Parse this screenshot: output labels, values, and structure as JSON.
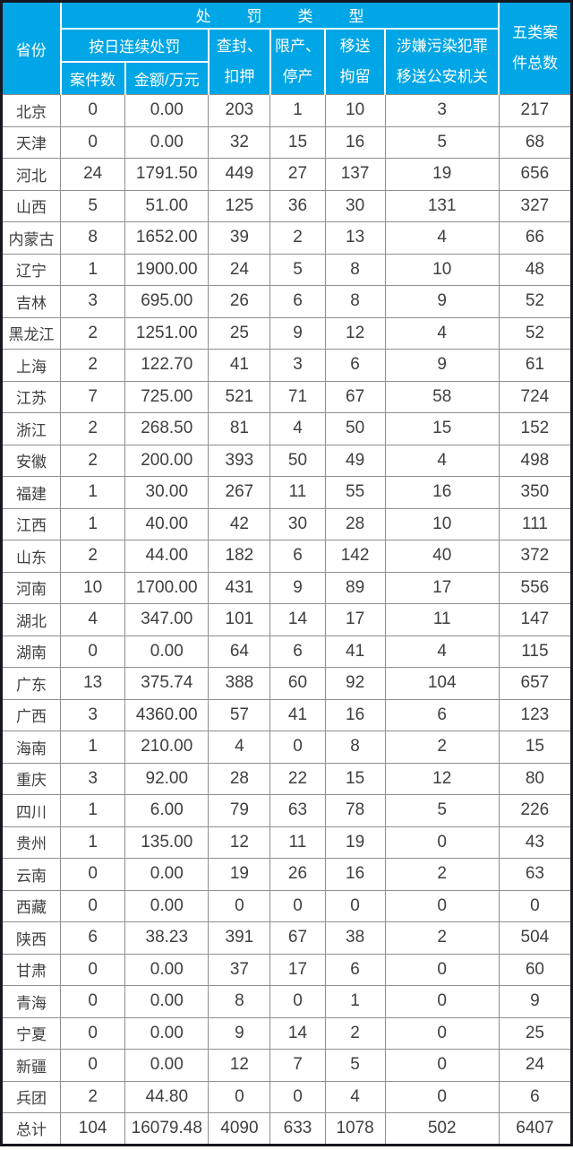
{
  "table": {
    "header": {
      "province": "省份",
      "penalty_type": "处罚类型",
      "daily_penalty": "按日连续处罚",
      "case_count": "案件数",
      "amount": "金额/万元",
      "seizure": "查封、\n扣押",
      "limit_production": "限产、\n停产",
      "transfer_detention": "移送\n拘留",
      "crime_transfer": "涉嫌污染犯罪\n移送公安机关",
      "five_types_total": "五类案\n件总数"
    },
    "colors": {
      "header_bg": "#00a6e6",
      "header_text": "#ffffff",
      "grid_line": "#8f8f8f",
      "outer_border": "#171721",
      "body_text": "#3f3f3f",
      "body_bg": "#ffffff"
    }
  },
  "chart_data": {
    "type": "table",
    "columns": [
      "省份",
      "按日连续处罚-案件数",
      "按日连续处罚-金额/万元",
      "查封、扣押",
      "限产、停产",
      "移送拘留",
      "涉嫌污染犯罪移送公安机关",
      "五类案件总数"
    ],
    "rows": [
      [
        "北京",
        "0",
        "0.00",
        "203",
        "1",
        "10",
        "3",
        "217"
      ],
      [
        "天津",
        "0",
        "0.00",
        "32",
        "15",
        "16",
        "5",
        "68"
      ],
      [
        "河北",
        "24",
        "1791.50",
        "449",
        "27",
        "137",
        "19",
        "656"
      ],
      [
        "山西",
        "5",
        "51.00",
        "125",
        "36",
        "30",
        "131",
        "327"
      ],
      [
        "内蒙古",
        "8",
        "1652.00",
        "39",
        "2",
        "13",
        "4",
        "66"
      ],
      [
        "辽宁",
        "1",
        "1900.00",
        "24",
        "5",
        "8",
        "10",
        "48"
      ],
      [
        "吉林",
        "3",
        "695.00",
        "26",
        "6",
        "8",
        "9",
        "52"
      ],
      [
        "黑龙江",
        "2",
        "1251.00",
        "25",
        "9",
        "12",
        "4",
        "52"
      ],
      [
        "上海",
        "2",
        "122.70",
        "41",
        "3",
        "6",
        "9",
        "61"
      ],
      [
        "江苏",
        "7",
        "725.00",
        "521",
        "71",
        "67",
        "58",
        "724"
      ],
      [
        "浙江",
        "2",
        "268.50",
        "81",
        "4",
        "50",
        "15",
        "152"
      ],
      [
        "安徽",
        "2",
        "200.00",
        "393",
        "50",
        "49",
        "4",
        "498"
      ],
      [
        "福建",
        "1",
        "30.00",
        "267",
        "11",
        "55",
        "16",
        "350"
      ],
      [
        "江西",
        "1",
        "40.00",
        "42",
        "30",
        "28",
        "10",
        "111"
      ],
      [
        "山东",
        "2",
        "44.00",
        "182",
        "6",
        "142",
        "40",
        "372"
      ],
      [
        "河南",
        "10",
        "1700.00",
        "431",
        "9",
        "89",
        "17",
        "556"
      ],
      [
        "湖北",
        "4",
        "347.00",
        "101",
        "14",
        "17",
        "11",
        "147"
      ],
      [
        "湖南",
        "0",
        "0.00",
        "64",
        "6",
        "41",
        "4",
        "115"
      ],
      [
        "广东",
        "13",
        "375.74",
        "388",
        "60",
        "92",
        "104",
        "657"
      ],
      [
        "广西",
        "3",
        "4360.00",
        "57",
        "41",
        "16",
        "6",
        "123"
      ],
      [
        "海南",
        "1",
        "210.00",
        "4",
        "0",
        "8",
        "2",
        "15"
      ],
      [
        "重庆",
        "3",
        "92.00",
        "28",
        "22",
        "15",
        "12",
        "80"
      ],
      [
        "四川",
        "1",
        "6.00",
        "79",
        "63",
        "78",
        "5",
        "226"
      ],
      [
        "贵州",
        "1",
        "135.00",
        "12",
        "11",
        "19",
        "0",
        "43"
      ],
      [
        "云南",
        "0",
        "0.00",
        "19",
        "26",
        "16",
        "2",
        "63"
      ],
      [
        "西藏",
        "0",
        "0.00",
        "0",
        "0",
        "0",
        "0",
        "0"
      ],
      [
        "陕西",
        "6",
        "38.23",
        "391",
        "67",
        "38",
        "2",
        "504"
      ],
      [
        "甘肃",
        "0",
        "0.00",
        "37",
        "17",
        "6",
        "0",
        "60"
      ],
      [
        "青海",
        "0",
        "0.00",
        "8",
        "0",
        "1",
        "0",
        "9"
      ],
      [
        "宁夏",
        "0",
        "0.00",
        "9",
        "14",
        "2",
        "0",
        "25"
      ],
      [
        "新疆",
        "0",
        "0.00",
        "12",
        "7",
        "5",
        "0",
        "24"
      ],
      [
        "兵团",
        "2",
        "44.80",
        "0",
        "0",
        "4",
        "0",
        "6"
      ],
      [
        "总计",
        "104",
        "16079.48",
        "4090",
        "633",
        "1078",
        "502",
        "6407"
      ]
    ]
  }
}
